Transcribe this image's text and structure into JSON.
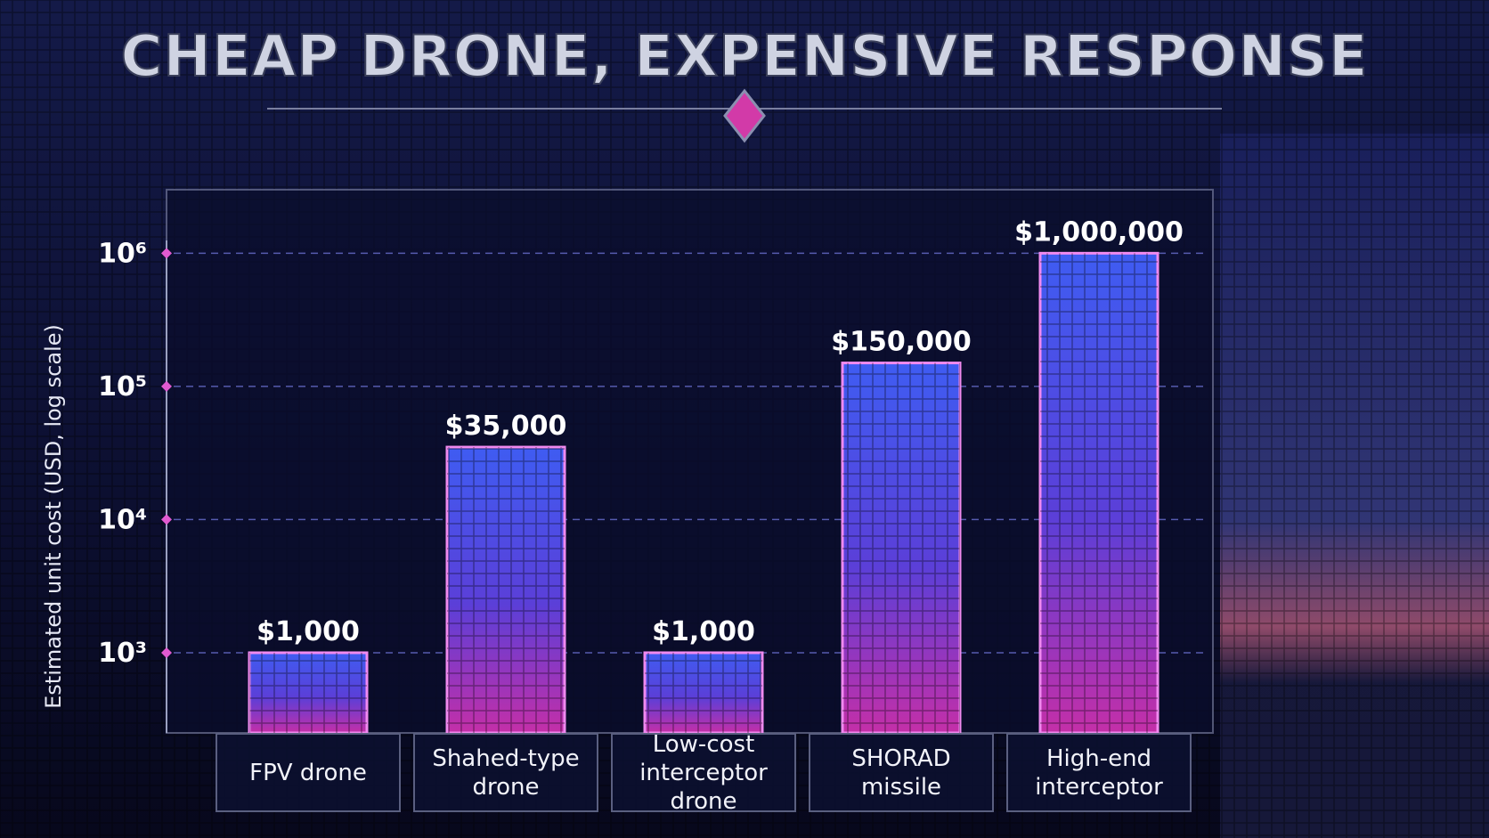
{
  "chart_data": {
    "type": "bar",
    "title": "CHEAP DRONE, EXPENSIVE RESPONSE",
    "y_label": "Estimated unit cost (USD, log scale)",
    "categories": [
      "FPV drone",
      "Shahed-type drone",
      "Low-cost interceptor drone",
      "SHORAD missile",
      "High-end interceptor"
    ],
    "values": [
      1000,
      35000,
      1000,
      150000,
      1000000
    ],
    "value_labels": [
      "$1,000",
      "$35,000",
      "$1,000",
      "$150,000",
      "$1,000,000"
    ],
    "color": "#3f5cf2",
    "log_scale": true,
    "ylim": [
      250,
      3000000
    ],
    "yticks": [
      {
        "value": 1000,
        "label": "10³"
      },
      {
        "value": 10000,
        "label": "10⁴"
      },
      {
        "value": 100000,
        "label": "10⁵"
      },
      {
        "value": 1000000,
        "label": "10⁶"
      }
    ],
    "grid": true
  }
}
